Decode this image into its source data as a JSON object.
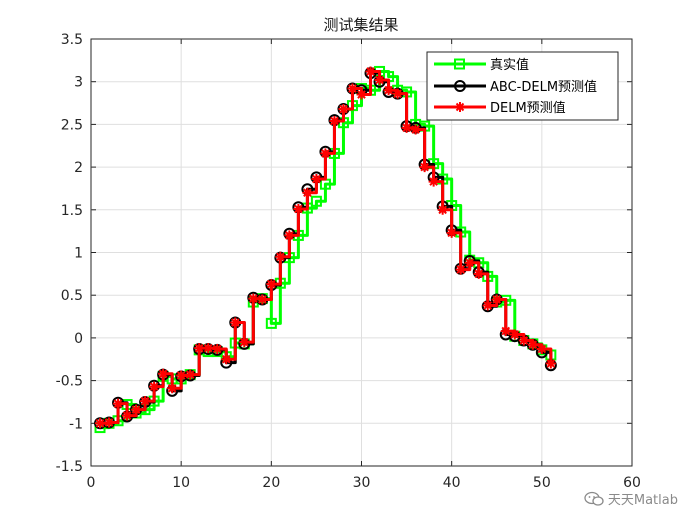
{
  "chart_data": {
    "type": "line",
    "title": "测试集结果",
    "xlabel": "",
    "ylabel": "",
    "xlim": [
      0,
      60
    ],
    "ylim": [
      -1.5,
      3.5
    ],
    "xticks": [
      0,
      10,
      20,
      30,
      40,
      50,
      60
    ],
    "yticks": [
      -1.5,
      -1,
      -0.5,
      0,
      0.5,
      1,
      1.5,
      2,
      2.5,
      3,
      3.5
    ],
    "grid": true,
    "legend_position": "top-right",
    "x": [
      1,
      2,
      3,
      4,
      5,
      6,
      7,
      8,
      9,
      10,
      11,
      12,
      13,
      14,
      15,
      16,
      17,
      18,
      19,
      20,
      21,
      22,
      23,
      24,
      25,
      26,
      27,
      28,
      29,
      30,
      31,
      32,
      33,
      34,
      35,
      36,
      37,
      38,
      39,
      40,
      41,
      42,
      43,
      44,
      45,
      46,
      47,
      48,
      49,
      50,
      51
    ],
    "series": [
      {
        "name": "真实值",
        "color": "#00ff00",
        "marker": "square",
        "values": [
          -1.05,
          -1.0,
          -0.97,
          -0.78,
          -0.88,
          -0.84,
          -0.74,
          -0.45,
          -0.48,
          -0.48,
          -0.43,
          -0.14,
          -0.16,
          -0.16,
          -0.22,
          -0.06,
          -0.07,
          0.42,
          0.46,
          0.17,
          0.64,
          0.94,
          1.2,
          1.52,
          1.6,
          1.8,
          2.16,
          2.52,
          2.72,
          2.92,
          2.9,
          3.12,
          3.06,
          2.9,
          2.88,
          2.5,
          2.48,
          2.04,
          1.86,
          1.55,
          1.24,
          0.91,
          0.88,
          0.72,
          0.42,
          0.44,
          0.02,
          -0.03,
          -0.07,
          -0.14,
          -0.2
        ]
      },
      {
        "name": "ABC-DELM预测值",
        "color": "#000000",
        "marker": "circle",
        "values": [
          -1.0,
          -0.99,
          -0.76,
          -0.92,
          -0.84,
          -0.75,
          -0.56,
          -0.43,
          -0.62,
          -0.45,
          -0.44,
          -0.13,
          -0.13,
          -0.14,
          -0.29,
          0.18,
          -0.07,
          0.47,
          0.45,
          0.62,
          0.94,
          1.22,
          1.53,
          1.74,
          1.88,
          2.18,
          2.55,
          2.68,
          2.92,
          2.9,
          3.1,
          3.0,
          2.88,
          2.86,
          2.48,
          2.46,
          2.03,
          1.88,
          1.54,
          1.26,
          0.81,
          0.9,
          0.77,
          0.37,
          0.45,
          0.04,
          0.02,
          -0.03,
          -0.08,
          -0.17,
          -0.32
        ]
      },
      {
        "name": "DELM预测值",
        "color": "#ff0000",
        "marker": "asterisk",
        "values": [
          -1.0,
          -0.99,
          -0.77,
          -0.91,
          -0.84,
          -0.74,
          -0.57,
          -0.42,
          -0.59,
          -0.44,
          -0.43,
          -0.12,
          -0.12,
          -0.13,
          -0.25,
          0.18,
          -0.05,
          0.46,
          0.45,
          0.63,
          0.95,
          1.2,
          1.51,
          1.7,
          1.86,
          2.16,
          2.54,
          2.68,
          2.92,
          2.85,
          3.12,
          3.02,
          2.9,
          2.86,
          2.46,
          2.44,
          2.0,
          1.83,
          1.5,
          1.23,
          0.8,
          0.88,
          0.75,
          0.38,
          0.45,
          0.08,
          0.04,
          -0.03,
          -0.08,
          -0.13,
          -0.3
        ]
      }
    ]
  },
  "watermark": {
    "text": "天天Matlab",
    "icon": "wechat-icon"
  }
}
